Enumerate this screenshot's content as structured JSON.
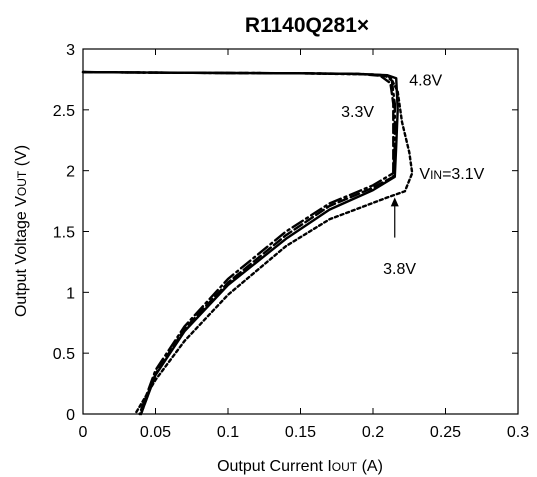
{
  "chart_data": {
    "type": "line",
    "title": "R1140Q281×",
    "xlabel": {
      "main": "Output Current I",
      "sub": "OUT",
      "unit": " (A)"
    },
    "ylabel": {
      "main": "Output Voltage V",
      "sub": "OUT",
      "unit": " (V)"
    },
    "xlim": [
      0,
      0.3
    ],
    "ylim": [
      0,
      3
    ],
    "x_ticks": [
      {
        "value": 0,
        "label": "0"
      },
      {
        "value": 0.05,
        "label": "0.05"
      },
      {
        "value": 0.1,
        "label": "0.1"
      },
      {
        "value": 0.15,
        "label": "0.15"
      },
      {
        "value": 0.2,
        "label": "0.2"
      },
      {
        "value": 0.25,
        "label": "0.25"
      },
      {
        "value": 0.3,
        "label": "0.3"
      }
    ],
    "y_ticks": [
      {
        "value": 0,
        "label": "0"
      },
      {
        "value": 0.5,
        "label": "0.5"
      },
      {
        "value": 1,
        "label": "1"
      },
      {
        "value": 1.5,
        "label": "1.5"
      },
      {
        "value": 2,
        "label": "2"
      },
      {
        "value": 2.5,
        "label": "2.5"
      },
      {
        "value": 3,
        "label": "3"
      }
    ],
    "grid": false,
    "series": [
      {
        "name": "4.8V",
        "style": "solid",
        "points": [
          [
            0,
            2.81
          ],
          [
            0.05,
            2.806
          ],
          [
            0.1,
            2.803
          ],
          [
            0.15,
            2.8
          ],
          [
            0.19,
            2.795
          ],
          [
            0.21,
            2.785
          ],
          [
            0.216,
            2.76
          ],
          [
            0.217,
            2.5
          ],
          [
            0.216,
            2.2
          ],
          [
            0.215,
            1.95
          ],
          [
            0.2,
            1.84
          ],
          [
            0.17,
            1.68
          ],
          [
            0.14,
            1.44
          ],
          [
            0.1,
            1.06
          ],
          [
            0.07,
            0.68
          ],
          [
            0.05,
            0.32
          ],
          [
            0.04,
            0
          ]
        ]
      },
      {
        "name": "3.3V",
        "style": "dash",
        "points": [
          [
            0,
            2.81
          ],
          [
            0.05,
            2.806
          ],
          [
            0.1,
            2.803
          ],
          [
            0.15,
            2.8
          ],
          [
            0.19,
            2.795
          ],
          [
            0.205,
            2.78
          ],
          [
            0.212,
            2.72
          ],
          [
            0.214,
            2.55
          ],
          [
            0.214,
            2.2
          ],
          [
            0.214,
            1.95
          ],
          [
            0.2,
            1.86
          ],
          [
            0.17,
            1.71
          ],
          [
            0.14,
            1.47
          ],
          [
            0.1,
            1.08
          ],
          [
            0.07,
            0.7
          ],
          [
            0.05,
            0.33
          ],
          [
            0.04,
            0
          ]
        ]
      },
      {
        "name": "3.8V",
        "style": "dashdot",
        "points": [
          [
            0,
            2.81
          ],
          [
            0.05,
            2.806
          ],
          [
            0.1,
            2.803
          ],
          [
            0.15,
            2.8
          ],
          [
            0.19,
            2.795
          ],
          [
            0.208,
            2.785
          ],
          [
            0.213,
            2.74
          ],
          [
            0.215,
            2.55
          ],
          [
            0.215,
            2.2
          ],
          [
            0.214,
            1.98
          ],
          [
            0.2,
            1.88
          ],
          [
            0.17,
            1.73
          ],
          [
            0.14,
            1.5
          ],
          [
            0.1,
            1.11
          ],
          [
            0.07,
            0.72
          ],
          [
            0.05,
            0.36
          ],
          [
            0.039,
            0
          ]
        ]
      },
      {
        "name": "V_IN=3.1V",
        "style": "dot",
        "points": [
          [
            0,
            2.81
          ],
          [
            0.05,
            2.806
          ],
          [
            0.1,
            2.803
          ],
          [
            0.15,
            2.8
          ],
          [
            0.2,
            2.79
          ],
          [
            0.212,
            2.77
          ],
          [
            0.217,
            2.65
          ],
          [
            0.22,
            2.4
          ],
          [
            0.225,
            2.15
          ],
          [
            0.227,
            1.98
          ],
          [
            0.222,
            1.83
          ],
          [
            0.21,
            1.78
          ],
          [
            0.17,
            1.6
          ],
          [
            0.14,
            1.38
          ],
          [
            0.1,
            0.98
          ],
          [
            0.07,
            0.6
          ],
          [
            0.05,
            0.28
          ],
          [
            0.036,
            0
          ]
        ]
      }
    ],
    "annotations": [
      {
        "text": "4.8V",
        "x": 0.225,
        "y": 2.75
      },
      {
        "text": "3.3V",
        "x": 0.178,
        "y": 2.49
      },
      {
        "text": "V",
        "sub": "IN",
        "rest": "=3.1V",
        "x": 0.232,
        "y": 1.98
      },
      {
        "text": "3.8V",
        "x": 0.207,
        "y": 1.2
      }
    ]
  }
}
